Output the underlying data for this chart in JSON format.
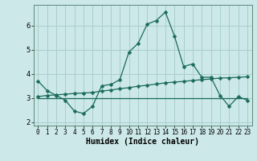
{
  "title": "",
  "xlabel": "Humidex (Indice chaleur)",
  "ylabel": "",
  "bg_color": "#cce8e8",
  "grid_color": "#a8cece",
  "line_color": "#1a6b5a",
  "xlim": [
    -0.5,
    23.5
  ],
  "ylim": [
    1.85,
    6.85
  ],
  "yticks": [
    2,
    3,
    4,
    5,
    6
  ],
  "xticks": [
    0,
    1,
    2,
    3,
    4,
    5,
    6,
    7,
    8,
    9,
    10,
    11,
    12,
    13,
    14,
    15,
    16,
    17,
    18,
    19,
    20,
    21,
    22,
    23
  ],
  "line1_x": [
    0,
    1,
    2,
    3,
    4,
    5,
    6,
    7,
    8,
    9,
    10,
    11,
    12,
    13,
    14,
    15,
    16,
    17,
    18,
    19,
    20,
    21,
    22,
    23
  ],
  "line1_y": [
    3.7,
    3.3,
    3.1,
    2.9,
    2.45,
    2.35,
    2.65,
    3.5,
    3.55,
    3.75,
    4.9,
    5.25,
    6.05,
    6.2,
    6.55,
    5.55,
    4.3,
    4.4,
    3.85,
    3.85,
    3.1,
    2.65,
    3.05,
    2.9
  ],
  "line2_x": [
    0,
    23
  ],
  "line2_y": [
    3.0,
    3.0
  ],
  "line3_x": [
    0,
    1,
    2,
    3,
    4,
    5,
    6,
    7,
    8,
    9,
    10,
    11,
    12,
    13,
    14,
    15,
    16,
    17,
    18,
    19,
    20,
    21,
    22,
    23
  ],
  "line3_y": [
    3.05,
    3.1,
    3.12,
    3.15,
    3.18,
    3.2,
    3.22,
    3.28,
    3.32,
    3.38,
    3.42,
    3.48,
    3.52,
    3.57,
    3.62,
    3.65,
    3.68,
    3.72,
    3.75,
    3.78,
    3.82,
    3.83,
    3.85,
    3.87
  ],
  "marker_size": 2.5,
  "linewidth": 0.9
}
